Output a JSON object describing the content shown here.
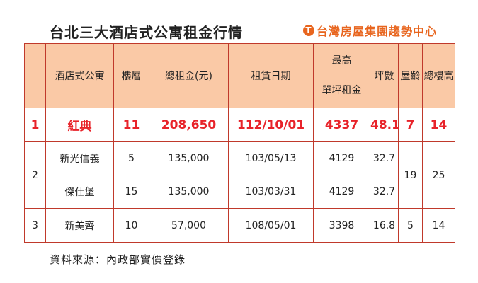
{
  "title": "台北三大酒店式公寓租金行情",
  "brand": {
    "logo_glyph": "T",
    "name": "台灣房屋集團趨勢中心",
    "color": "#e8651e"
  },
  "colors": {
    "header_bg": "#fac9a6",
    "border": "#c0392b",
    "highlight_text": "#e8232a"
  },
  "table": {
    "headers": {
      "index": "",
      "name": "酒店式公寓",
      "floor": "樓層",
      "total_rent": "總租金(元)",
      "rent_date": "租賃日期",
      "max_unit_rent_line1": "最高",
      "max_unit_rent_line2": "單坪租金",
      "area": "坪數",
      "age": "屋齡",
      "total_floors": "總樓高"
    },
    "rows": [
      {
        "index": "1",
        "name": "紅典",
        "floor": "11",
        "total_rent": "208,650",
        "rent_date": "112/10/01",
        "max_unit_rent": "4337",
        "area": "48.1",
        "age": "7",
        "total_floors": "14"
      },
      {
        "index": "2",
        "name": "新光信義",
        "floor": "5",
        "total_rent": "135,000",
        "rent_date": "103/05/13",
        "max_unit_rent": "4129",
        "area": "32.7",
        "age": "19",
        "total_floors": "25"
      },
      {
        "name": "傑仕堡",
        "floor": "15",
        "total_rent": "135,000",
        "rent_date": "103/03/31",
        "max_unit_rent": "4129",
        "area": "32.7"
      },
      {
        "index": "3",
        "name": "新美齊",
        "floor": "10",
        "total_rent": "57,000",
        "rent_date": "108/05/01",
        "max_unit_rent": "3398",
        "area": "16.8",
        "age": "5",
        "total_floors": "14"
      }
    ]
  },
  "source": "資料來源：內政部實價登錄"
}
